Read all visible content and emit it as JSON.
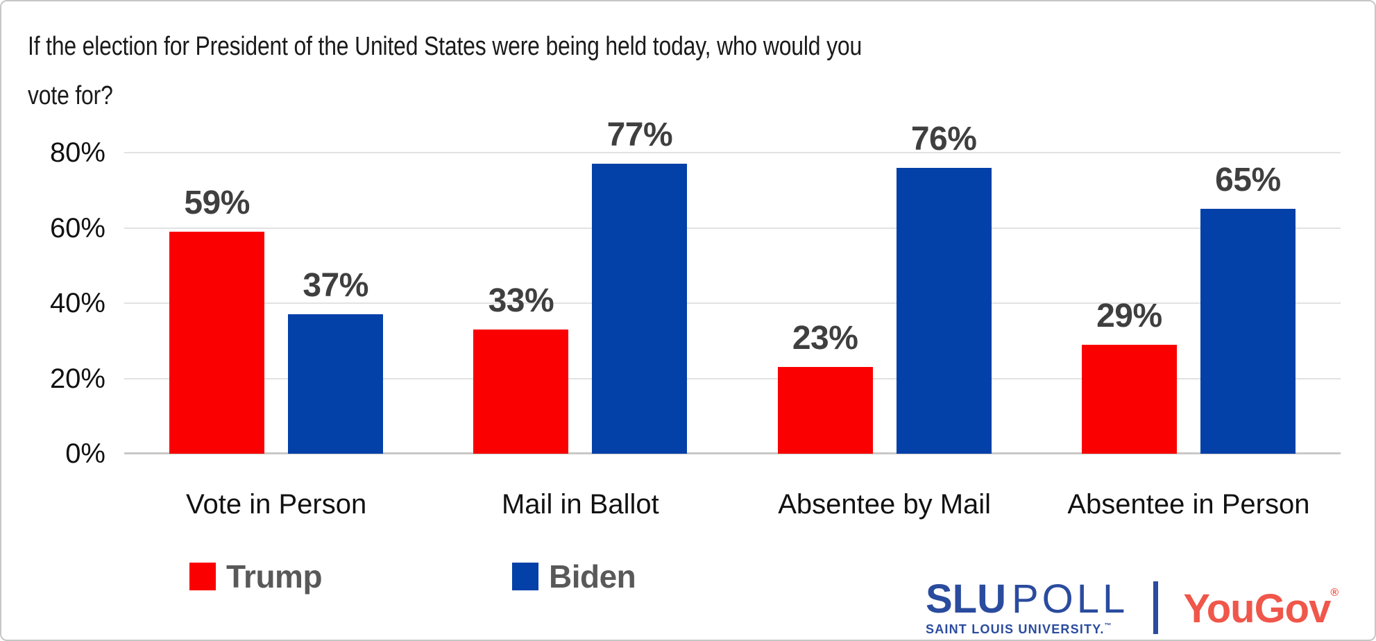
{
  "header": {
    "title_lines": [
      "If the election for President of the United States were being held today, who would you",
      "vote for?"
    ]
  },
  "chart_data": {
    "type": "bar",
    "title": "If the election for President of the United States were being held today, who would you vote for?",
    "categories": [
      "Vote in Person",
      "Mail in Ballot",
      "Absentee by Mail",
      "Absentee in Person"
    ],
    "series": [
      {
        "name": "Trump",
        "color": "#fa0000",
        "values": [
          59,
          33,
          23,
          29
        ]
      },
      {
        "name": "Biden",
        "color": "#0340a8",
        "values": [
          37,
          77,
          76,
          65
        ]
      }
    ],
    "data_labels": [
      [
        "59%",
        "33%",
        "23%",
        "29%"
      ],
      [
        "37%",
        "77%",
        "76%",
        "65%"
      ]
    ],
    "ylim": [
      0,
      80
    ],
    "y_tick_labels": [
      "80%",
      "60%",
      "40%",
      "20%",
      "0%"
    ],
    "value_suffix": "%",
    "grid": true,
    "legend_position": "bottom-left",
    "data_label_color": "#3f3f3f",
    "legend_text_color": "#595959",
    "gridline_color": "#e2e2e2",
    "baseline_color": "#c8c8c8"
  },
  "branding": {
    "slu_name": "SLU",
    "slu_product": "POLL",
    "slu_subtitle": "SAINT LOUIS UNIVERSITY.",
    "slu_trademark": "™",
    "partner_name": "YouGov",
    "partner_registered": "®",
    "slu_blue": "#2a4b9e",
    "yougov_coral": "#f0564a"
  }
}
